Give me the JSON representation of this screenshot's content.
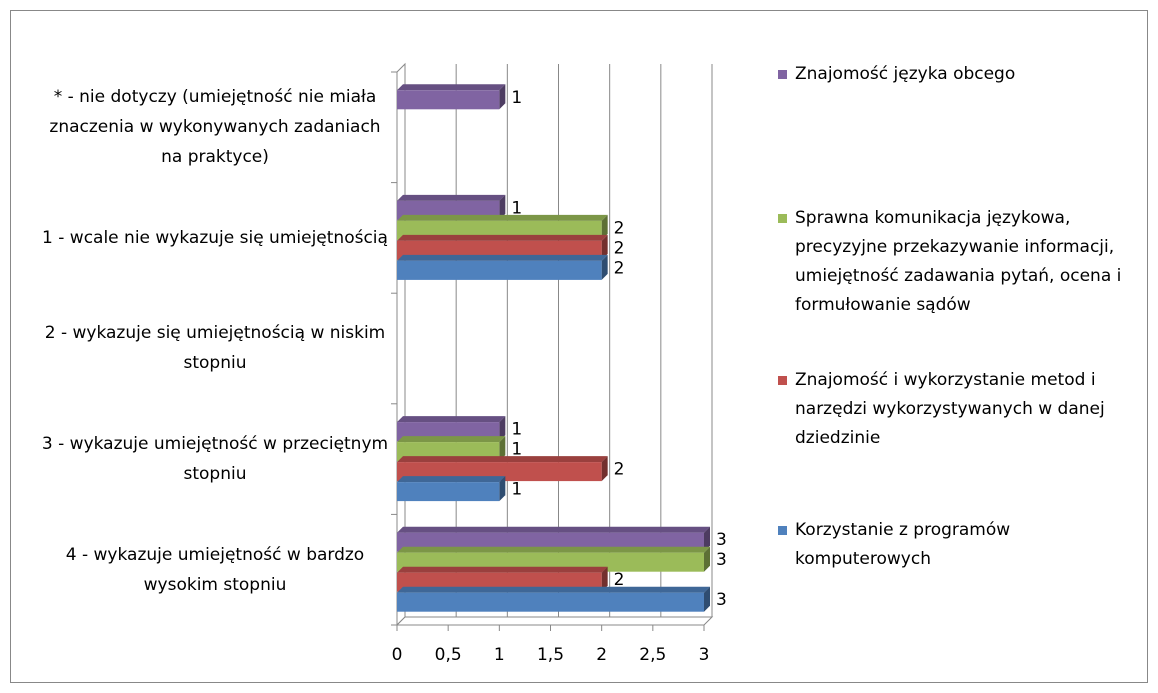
{
  "chart_data": {
    "type": "bar3d_horizontal",
    "categories": [
      "* - nie dotyczy (umiejętność nie miała znaczenia w wykonywanych zadaniach na praktyce)",
      "1 - wcale nie wykazuje się umiejętnością",
      "2 - wykazuje się umiejętnością w niskim stopniu",
      "3 - wykazuje umiejętność w przeciętnym stopniu",
      "4 - wykazuje umiejętność w bardzo wysokim stopniu"
    ],
    "series": [
      {
        "name": "Znajomość języka obcego",
        "color": "#8064a2",
        "values": [
          1,
          1,
          null,
          1,
          3
        ]
      },
      {
        "name": "Sprawna komunikacja językowa, precyzyjne przekazywanie informacji, umiejętność zadawania pytań, ocena i formułowanie sądów",
        "color": "#9bbb59",
        "values": [
          null,
          2,
          null,
          1,
          3
        ]
      },
      {
        "name": "Znajomość i wykorzystanie metod i narzędzi wykorzystywanych w danej dziedzinie",
        "color": "#c0504d",
        "values": [
          null,
          2,
          null,
          2,
          2
        ]
      },
      {
        "name": "Korzystanie z programów komputerowych",
        "color": "#4f81bd",
        "values": [
          null,
          2,
          null,
          1,
          3
        ]
      }
    ],
    "xlim": [
      0,
      3
    ],
    "xticks": [
      0,
      {
        "value": 0.5,
        "label": "0,5"
      },
      1,
      {
        "value": 1.5,
        "label": "1,5"
      },
      2,
      {
        "value": 2.5,
        "label": "2,5"
      },
      3
    ],
    "grid": true,
    "legend": "right"
  }
}
